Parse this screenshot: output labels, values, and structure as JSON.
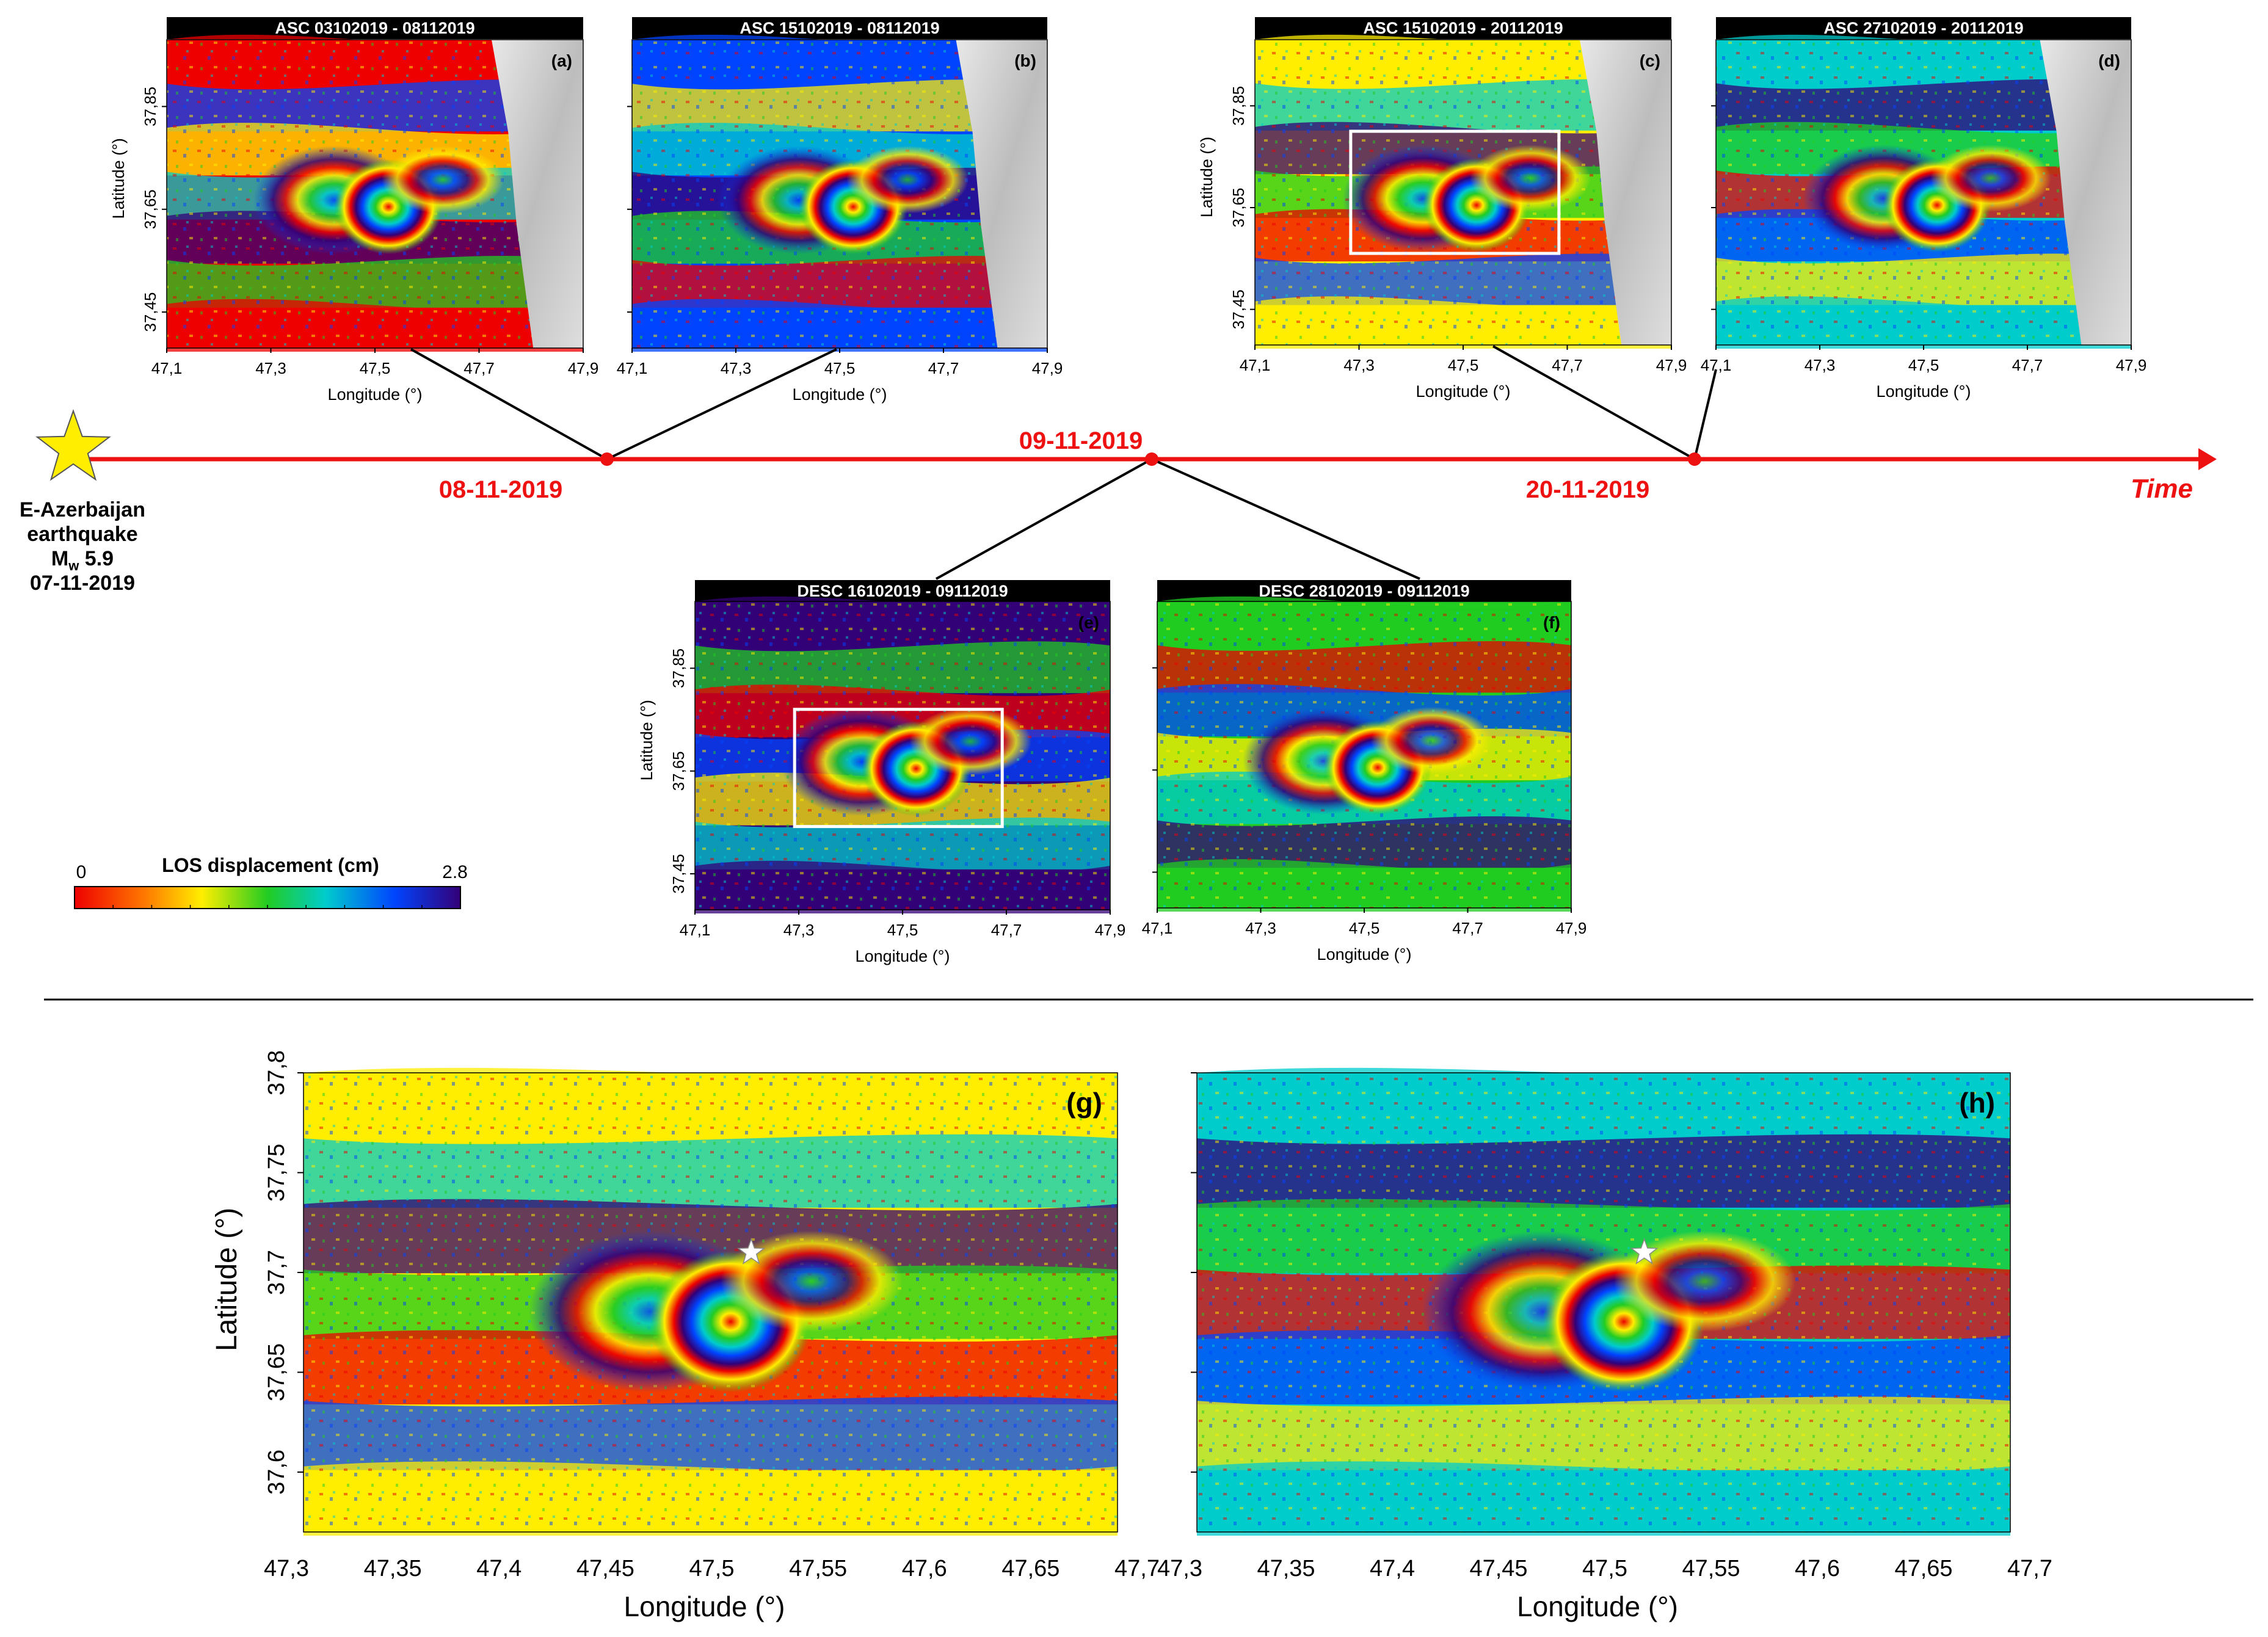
{
  "axis_labels": {
    "longitude": "Longitude (°)",
    "latitude": "Latitude (°)"
  },
  "small_lon_ticks": [
    "47,1",
    "47,3",
    "47,5",
    "47,7",
    "47,9"
  ],
  "small_lat_ticks": [
    "37,85",
    "37,65",
    "37,45"
  ],
  "large_lon_ticks": [
    "47,3",
    "47,35",
    "47,4",
    "47,45",
    "47,5",
    "47,55",
    "47,6",
    "47,65",
    "47,7"
  ],
  "large_lat_ticks": [
    "37,8",
    "37,75",
    "37,7",
    "37,65",
    "37,6"
  ],
  "panels": [
    {
      "id": "a",
      "title": "ASC  03102019 - 08112019",
      "label": "(a)"
    },
    {
      "id": "b",
      "title": "ASC  15102019 - 08112019",
      "label": "(b)"
    },
    {
      "id": "c",
      "title": "ASC  15102019 - 20112019",
      "label": "(c)"
    },
    {
      "id": "d",
      "title": "ASC  27102019 - 20112019",
      "label": "(d)"
    },
    {
      "id": "e",
      "title": "DESC  16102019 - 09112019",
      "label": "(e)"
    },
    {
      "id": "f",
      "title": "DESC  28102019 - 09112019",
      "label": "(f)"
    },
    {
      "id": "g",
      "label": "(g)"
    },
    {
      "id": "h",
      "label": "(h)"
    }
  ],
  "timeline": {
    "dates": [
      "08-11-2019",
      "09-11-2019",
      "20-11-2019"
    ],
    "axis_label": "Time",
    "line_color": "#ee1111"
  },
  "earthquake": {
    "line1": "E-Azerbaijan",
    "line2": "earthquake",
    "magnitude_symbol": "M",
    "magnitude_subscript": "w",
    "magnitude_value": "5.9",
    "date": "07-11-2019",
    "icon": "star-icon",
    "star_color": "#ffee00"
  },
  "colorbar": {
    "title": "LOS displacement (cm)",
    "min": "0",
    "max": "2.8",
    "colors": [
      "#ee0000",
      "#ff7700",
      "#ffee00",
      "#22cc22",
      "#00cccc",
      "#0044ff",
      "#330077"
    ]
  }
}
